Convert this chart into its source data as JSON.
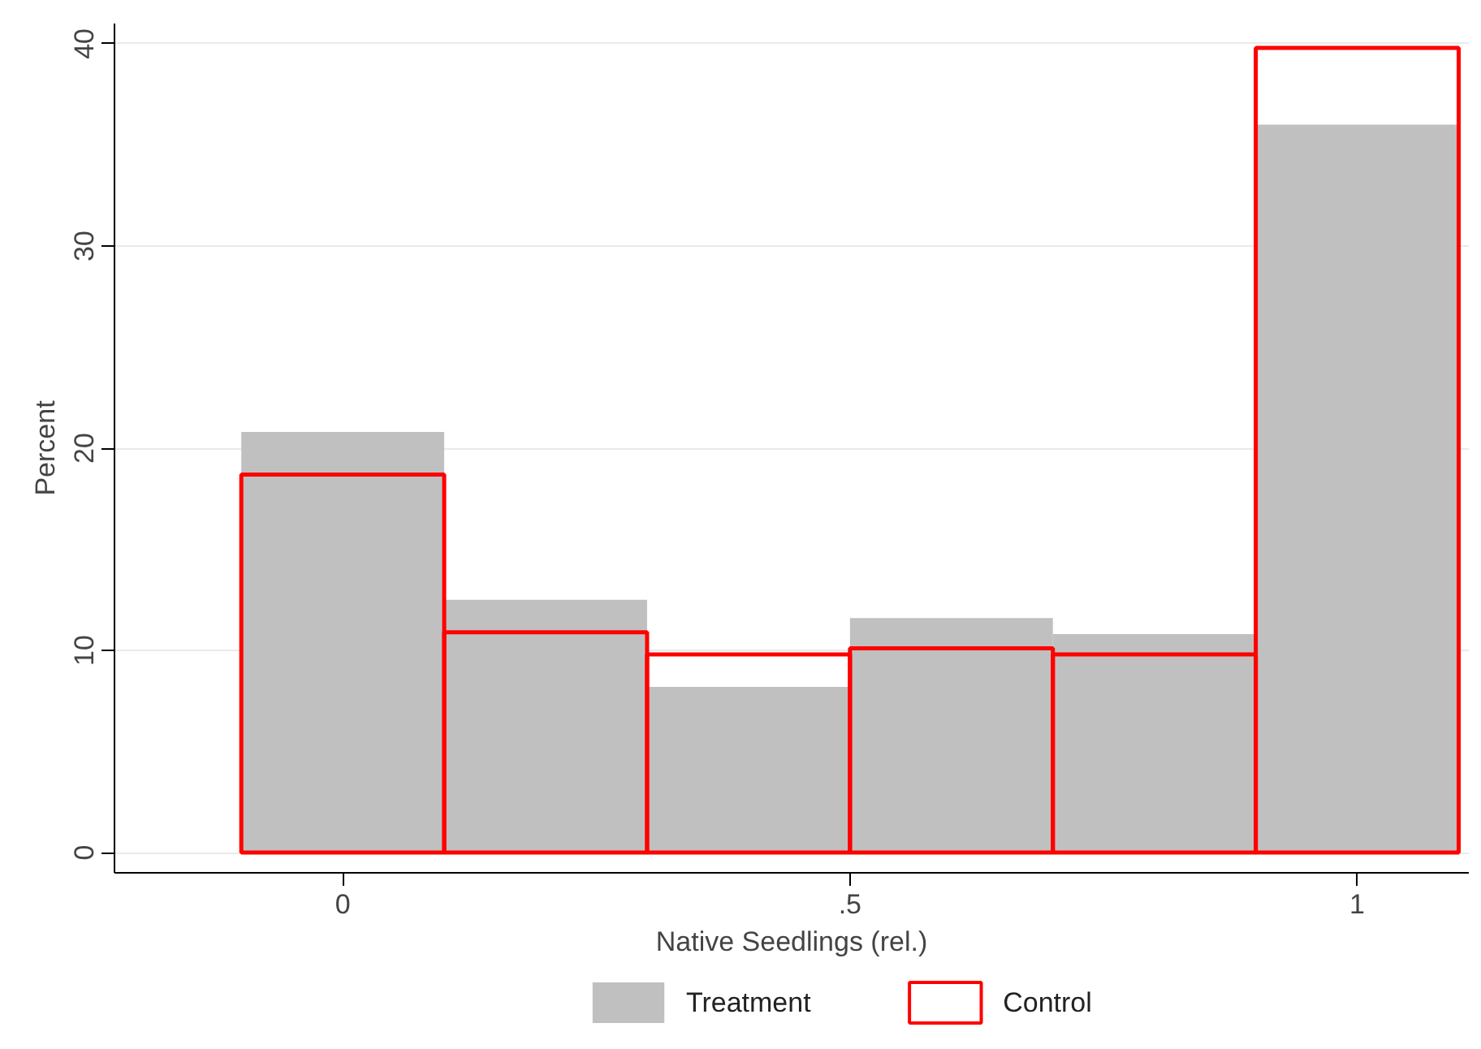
{
  "chart_data": {
    "type": "histogram",
    "xlabel": "Native Seedlings (rel.)",
    "ylabel": "Percent",
    "bins": [
      -0.1,
      0.1,
      0.3,
      0.5,
      0.7,
      0.9,
      1.1
    ],
    "series": [
      {
        "name": "Treatment",
        "color": "#c0c0c0",
        "values": [
          20.8,
          12.5,
          8.2,
          11.6,
          10.8,
          36.0
        ]
      },
      {
        "name": "Control",
        "color": "#ff0000",
        "values": [
          18.7,
          10.9,
          9.8,
          10.1,
          9.8,
          39.8
        ]
      }
    ],
    "xlim": [
      -0.225,
      1.11
    ],
    "ylim": [
      -1,
      41
    ],
    "xticks": [
      0,
      {
        "value": 0.5,
        "label": ".5"
      },
      1
    ],
    "yticks": [
      0,
      10,
      20,
      30,
      40
    ],
    "grid": "y",
    "legend": "bottom"
  }
}
